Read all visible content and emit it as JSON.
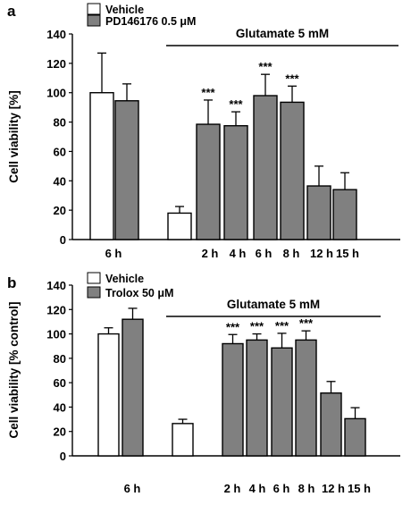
{
  "chart_data": [
    {
      "panel_label": "a",
      "type": "bar",
      "ylabel": "Cell viability [%]",
      "ylim": [
        0,
        140
      ],
      "yticks": [
        0,
        20,
        40,
        60,
        80,
        100,
        120,
        140
      ],
      "legend": [
        {
          "label": "Vehicle",
          "fill": "#ffffff"
        },
        {
          "label": "PD146176 0.5 μM",
          "fill": "#808080"
        }
      ],
      "bracket_label": "Glutamate 5 mM",
      "bars": [
        {
          "group": "6 h",
          "series": "Vehicle",
          "value": 100,
          "error": 27,
          "sig": ""
        },
        {
          "group": "6 h",
          "series": "PD146176 0.5 μM",
          "value": 94.5,
          "error": 11.5,
          "sig": ""
        },
        {
          "group": "",
          "series": "Vehicle",
          "value": 18,
          "error": 4.5,
          "sig": ""
        },
        {
          "group": "2 h",
          "series": "PD146176 0.5 μM",
          "value": 78.5,
          "error": 16.5,
          "sig": "***"
        },
        {
          "group": "4 h",
          "series": "PD146176 0.5 μM",
          "value": 77.5,
          "error": 9.5,
          "sig": "***"
        },
        {
          "group": "6 h",
          "series": "PD146176 0.5 μM",
          "value": 98,
          "error": 14.5,
          "sig": "***"
        },
        {
          "group": "8 h",
          "series": "PD146176 0.5 μM",
          "value": 93.5,
          "error": 11,
          "sig": "***"
        },
        {
          "group": "12 h",
          "series": "PD146176 0.5 μM",
          "value": 36.5,
          "error": 13.5,
          "sig": ""
        },
        {
          "group": "15 h",
          "series": "PD146176 0.5 μM",
          "value": 34,
          "error": 11.5,
          "sig": ""
        }
      ],
      "xtick_labels": [
        "6 h",
        "2 h",
        "4 h",
        "6 h",
        "8 h",
        "12 h",
        "15 h"
      ]
    },
    {
      "panel_label": "b",
      "type": "bar",
      "ylabel": "Cell viability [% control]",
      "ylim": [
        0,
        140
      ],
      "yticks": [
        0,
        20,
        40,
        60,
        80,
        100,
        120,
        140
      ],
      "legend": [
        {
          "label": "Vehicle",
          "fill": "#ffffff"
        },
        {
          "label": "Trolox 50 μM",
          "fill": "#808080"
        }
      ],
      "bracket_label": "Glutamate 5 mM",
      "bars": [
        {
          "group": "6 h",
          "series": "Vehicle",
          "value": 100,
          "error": 5,
          "sig": ""
        },
        {
          "group": "6 h",
          "series": "Trolox 50 μM",
          "value": 112,
          "error": 9,
          "sig": ""
        },
        {
          "group": "",
          "series": "Vehicle",
          "value": 26.5,
          "error": 3.5,
          "sig": ""
        },
        {
          "group": "2 h",
          "series": "Trolox 50 μM",
          "value": 92,
          "error": 7.5,
          "sig": "***"
        },
        {
          "group": "4 h",
          "series": "Trolox 50 μM",
          "value": 95,
          "error": 5,
          "sig": "***"
        },
        {
          "group": "6 h",
          "series": "Trolox 50 μM",
          "value": 88.5,
          "error": 12,
          "sig": "***"
        },
        {
          "group": "8 h",
          "series": "Trolox 50 μM",
          "value": 95,
          "error": 7.5,
          "sig": "***"
        },
        {
          "group": "12 h",
          "series": "Trolox 50 μM",
          "value": 51.5,
          "error": 9.5,
          "sig": ""
        },
        {
          "group": "15 h",
          "series": "Trolox 50 μM",
          "value": 30.5,
          "error": 9,
          "sig": ""
        }
      ],
      "xtick_labels": [
        "6 h",
        "2 h",
        "4 h",
        "6 h",
        "8 h",
        "12 h",
        "15 h"
      ]
    }
  ]
}
